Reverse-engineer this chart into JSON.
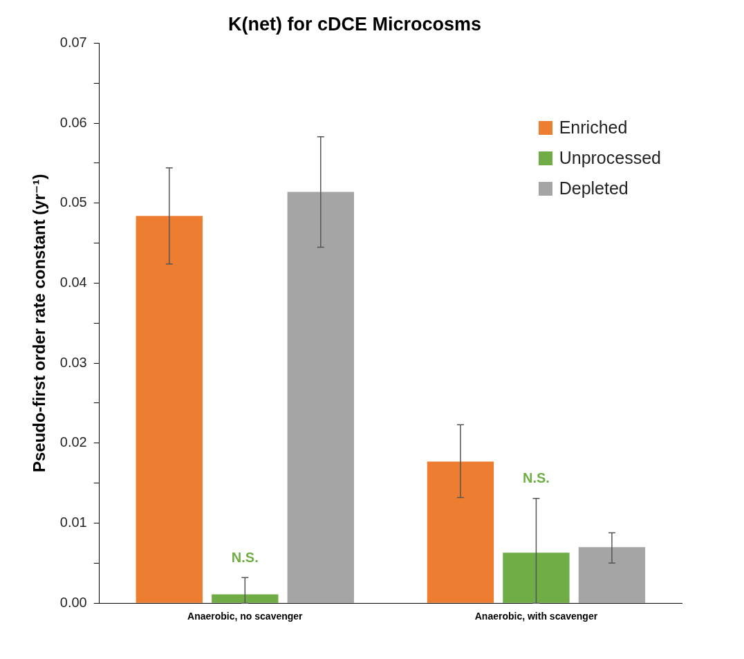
{
  "chart_data": {
    "type": "bar",
    "title": "K(net) for cDCE Microcosms",
    "ylabel": "Pseudo-first order rate constant (yr⁻¹)",
    "categories": [
      "Anaerobic, no scavenger",
      "Anaerobic, with scavenger"
    ],
    "series": [
      {
        "name": "Enriched",
        "color": "#ed7d31",
        "values": [
          0.0484,
          0.0177
        ],
        "errors": [
          [
            0.0424,
            0.0544
          ],
          [
            0.0132,
            0.0223
          ]
        ]
      },
      {
        "name": "Unprocessed",
        "color": "#70ad47",
        "values": [
          0.0011,
          0.0063
        ],
        "errors": [
          [
            0,
            0.0032
          ],
          [
            0,
            0.0131
          ]
        ]
      },
      {
        "name": "Depleted",
        "color": "#a5a5a5",
        "values": [
          0.0514,
          0.007
        ],
        "errors": [
          [
            0.0445,
            0.0583
          ],
          [
            0.005,
            0.0088
          ]
        ]
      }
    ],
    "ylim": [
      0,
      0.07
    ],
    "yticks": [
      {
        "value": 0,
        "label": "0.00"
      },
      {
        "value": 0.005,
        "label": null
      },
      {
        "value": 0.01,
        "label": "0.01"
      },
      {
        "value": 0.015,
        "label": null
      },
      {
        "value": 0.02,
        "label": "0.02"
      },
      {
        "value": 0.025,
        "label": null
      },
      {
        "value": 0.03,
        "label": "0.03"
      },
      {
        "value": 0.035,
        "label": null
      },
      {
        "value": 0.04,
        "label": "0.04"
      },
      {
        "value": 0.045,
        "label": null
      },
      {
        "value": 0.05,
        "label": "0.05"
      },
      {
        "value": 0.055,
        "label": null
      },
      {
        "value": 0.06,
        "label": "0.06"
      },
      {
        "value": 0.065,
        "label": null
      },
      {
        "value": 0.07,
        "label": "0.07"
      }
    ],
    "grid": false,
    "legend": "top right",
    "annotations": [
      "N.S.",
      "N.S."
    ]
  }
}
